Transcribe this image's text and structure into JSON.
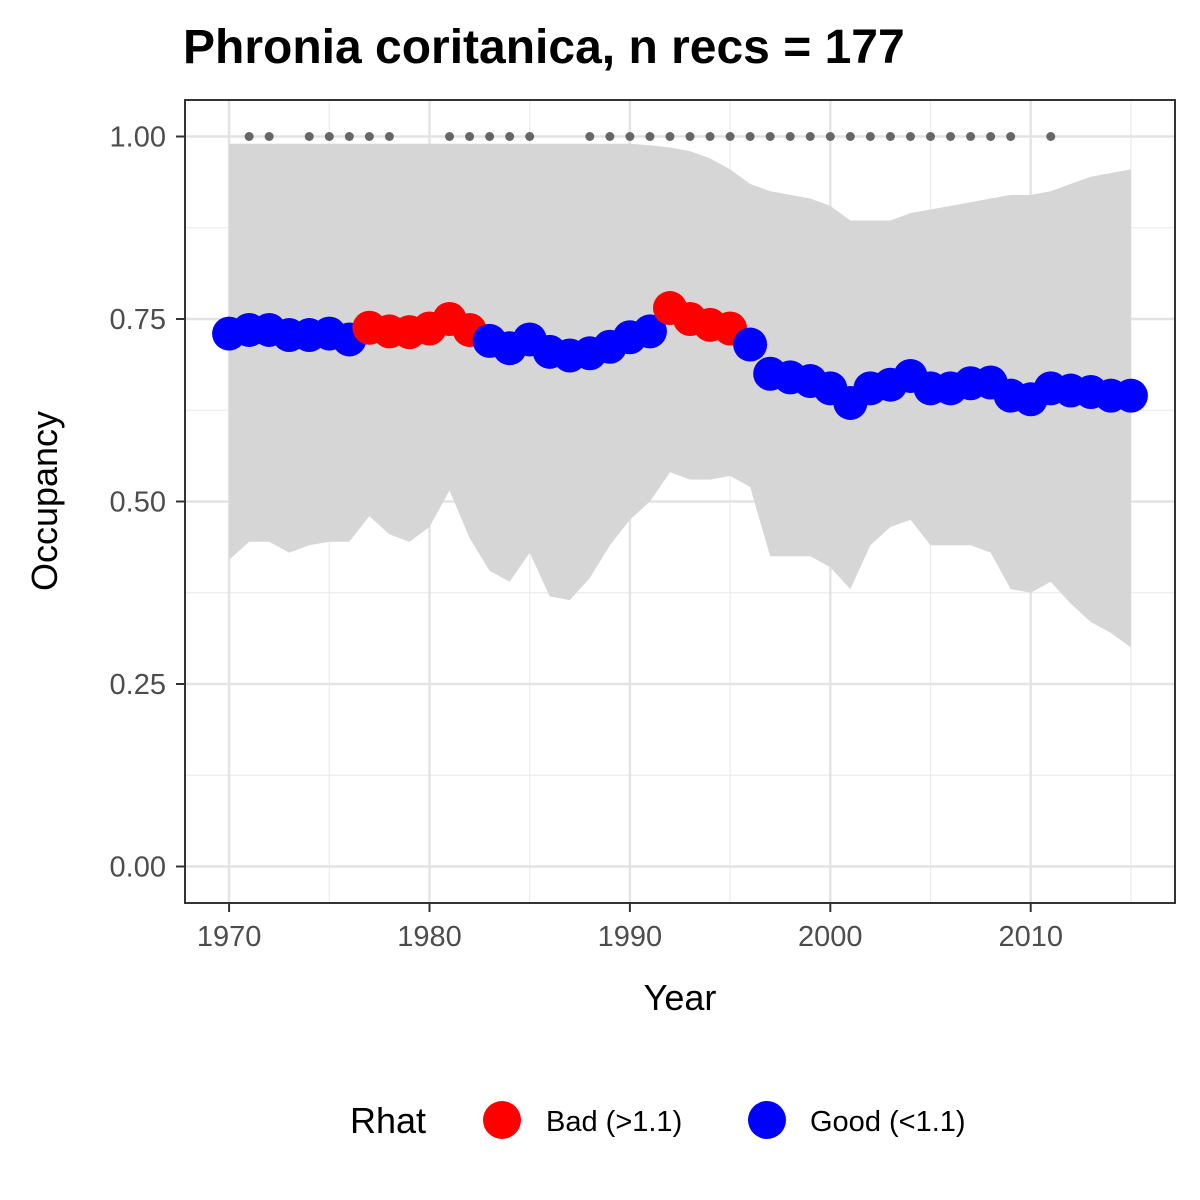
{
  "chart_data": {
    "type": "line",
    "title": "Phronia coritanica, n recs = 177",
    "xlabel": "Year",
    "ylabel": "Occupancy",
    "xlim": [
      1967.8,
      2017.2
    ],
    "ylim": [
      -0.05,
      1.05
    ],
    "x_ticks": [
      1970,
      1980,
      1990,
      2000,
      2010
    ],
    "x_tick_labels": [
      "1970",
      "1980",
      "1990",
      "2000",
      "2010"
    ],
    "y_ticks": [
      0,
      0.25,
      0.5,
      0.75,
      1.0
    ],
    "y_tick_labels": [
      "0.00",
      "0.25",
      "0.50",
      "0.75",
      "1.00"
    ],
    "grid": true,
    "legend": {
      "title": "Rhat",
      "position": "bottom",
      "entries": [
        {
          "label": "Bad (>1.1)",
          "color": "#ff0000"
        },
        {
          "label": "Good (<1.1)",
          "color": "#0000ff"
        }
      ]
    },
    "colors": {
      "bad": "#ff0000",
      "good": "#0000ff",
      "ribbon": "#d6d6d6",
      "record_dots": "#666666"
    },
    "x": [
      1970,
      1971,
      1972,
      1973,
      1974,
      1975,
      1976,
      1977,
      1978,
      1979,
      1980,
      1981,
      1982,
      1983,
      1984,
      1985,
      1986,
      1987,
      1988,
      1989,
      1990,
      1991,
      1992,
      1993,
      1994,
      1995,
      1996,
      1997,
      1998,
      1999,
      2000,
      2001,
      2002,
      2003,
      2004,
      2005,
      2006,
      2007,
      2008,
      2009,
      2010,
      2011,
      2012,
      2013,
      2014,
      2015
    ],
    "series": [
      {
        "values": [
          0.73,
          0.735,
          0.735,
          0.728,
          0.728,
          0.73,
          0.722,
          0.738,
          0.733,
          0.732,
          0.737,
          0.75,
          0.735,
          0.72,
          0.71,
          0.722,
          0.705,
          0.7,
          0.703,
          0.712,
          0.725,
          0.733,
          0.765,
          0.75,
          0.742,
          0.737,
          0.715,
          0.675,
          0.67,
          0.665,
          0.655,
          0.635,
          0.655,
          0.66,
          0.672,
          0.655,
          0.655,
          0.662,
          0.663,
          0.645,
          0.64,
          0.655,
          0.652,
          0.65,
          0.645,
          0.645
        ],
        "rhat": [
          "good",
          "good",
          "good",
          "good",
          "good",
          "good",
          "good",
          "bad",
          "bad",
          "bad",
          "bad",
          "bad",
          "bad",
          "good",
          "good",
          "good",
          "good",
          "good",
          "good",
          "good",
          "good",
          "good",
          "bad",
          "bad",
          "bad",
          "bad",
          "good",
          "good",
          "good",
          "good",
          "good",
          "good",
          "good",
          "good",
          "good",
          "good",
          "good",
          "good",
          "good",
          "good",
          "good",
          "good",
          "good",
          "good",
          "good",
          "good"
        ]
      }
    ],
    "ribbon": {
      "lower": [
        0.42,
        0.445,
        0.445,
        0.43,
        0.44,
        0.445,
        0.445,
        0.48,
        0.455,
        0.445,
        0.465,
        0.515,
        0.45,
        0.405,
        0.39,
        0.43,
        0.37,
        0.365,
        0.395,
        0.44,
        0.475,
        0.5,
        0.54,
        0.53,
        0.53,
        0.535,
        0.52,
        0.425,
        0.425,
        0.425,
        0.41,
        0.38,
        0.44,
        0.465,
        0.475,
        0.44,
        0.44,
        0.44,
        0.43,
        0.38,
        0.375,
        0.39,
        0.36,
        0.335,
        0.32,
        0.3
      ],
      "upper": [
        0.99,
        0.99,
        0.99,
        0.99,
        0.99,
        0.99,
        0.99,
        0.99,
        0.99,
        0.99,
        0.99,
        0.99,
        0.99,
        0.99,
        0.99,
        0.99,
        0.99,
        0.99,
        0.99,
        0.99,
        0.99,
        0.988,
        0.985,
        0.98,
        0.97,
        0.955,
        0.935,
        0.925,
        0.92,
        0.915,
        0.905,
        0.885,
        0.885,
        0.885,
        0.895,
        0.9,
        0.905,
        0.91,
        0.915,
        0.92,
        0.92,
        0.925,
        0.935,
        0.945,
        0.95,
        0.955
      ]
    },
    "record_years": [
      1971,
      1972,
      1974,
      1975,
      1976,
      1977,
      1978,
      1981,
      1982,
      1983,
      1984,
      1985,
      1988,
      1989,
      1990,
      1991,
      1992,
      1993,
      1994,
      1995,
      1996,
      1997,
      1998,
      1999,
      2000,
      2001,
      2002,
      2003,
      2004,
      2005,
      2006,
      2007,
      2008,
      2009,
      2011
    ],
    "record_marker_y": 1.0
  }
}
